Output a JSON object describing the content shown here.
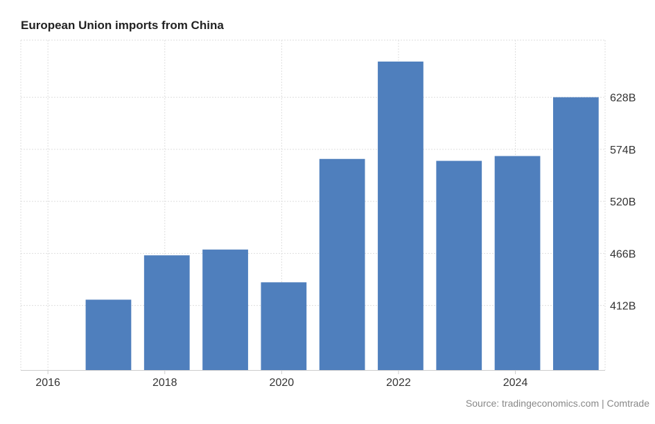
{
  "chart_data": {
    "type": "bar",
    "title": "European Union imports from China",
    "categories": [
      "2016",
      "2017",
      "2018",
      "2019",
      "2020",
      "2021",
      "2022",
      "2023",
      "2024",
      "2025"
    ],
    "series": [
      {
        "values": [
          345,
          418,
          464,
          470,
          436,
          564,
          665,
          562,
          567,
          628
        ]
      }
    ],
    "x_tick_labels": [
      "2016",
      "2018",
      "2020",
      "2022",
      "2024"
    ],
    "y_ticks": [
      412,
      466,
      520,
      574,
      628
    ],
    "y_tick_labels": [
      "412B",
      "466B",
      "520B",
      "574B",
      "628B"
    ],
    "ylim": [
      345,
      665
    ],
    "y_axis_position": "right",
    "grid": true,
    "bar_color": "#4f7fbd",
    "grid_color": "#dddddd"
  },
  "source": "Source: tradingeconomics.com | Comtrade"
}
